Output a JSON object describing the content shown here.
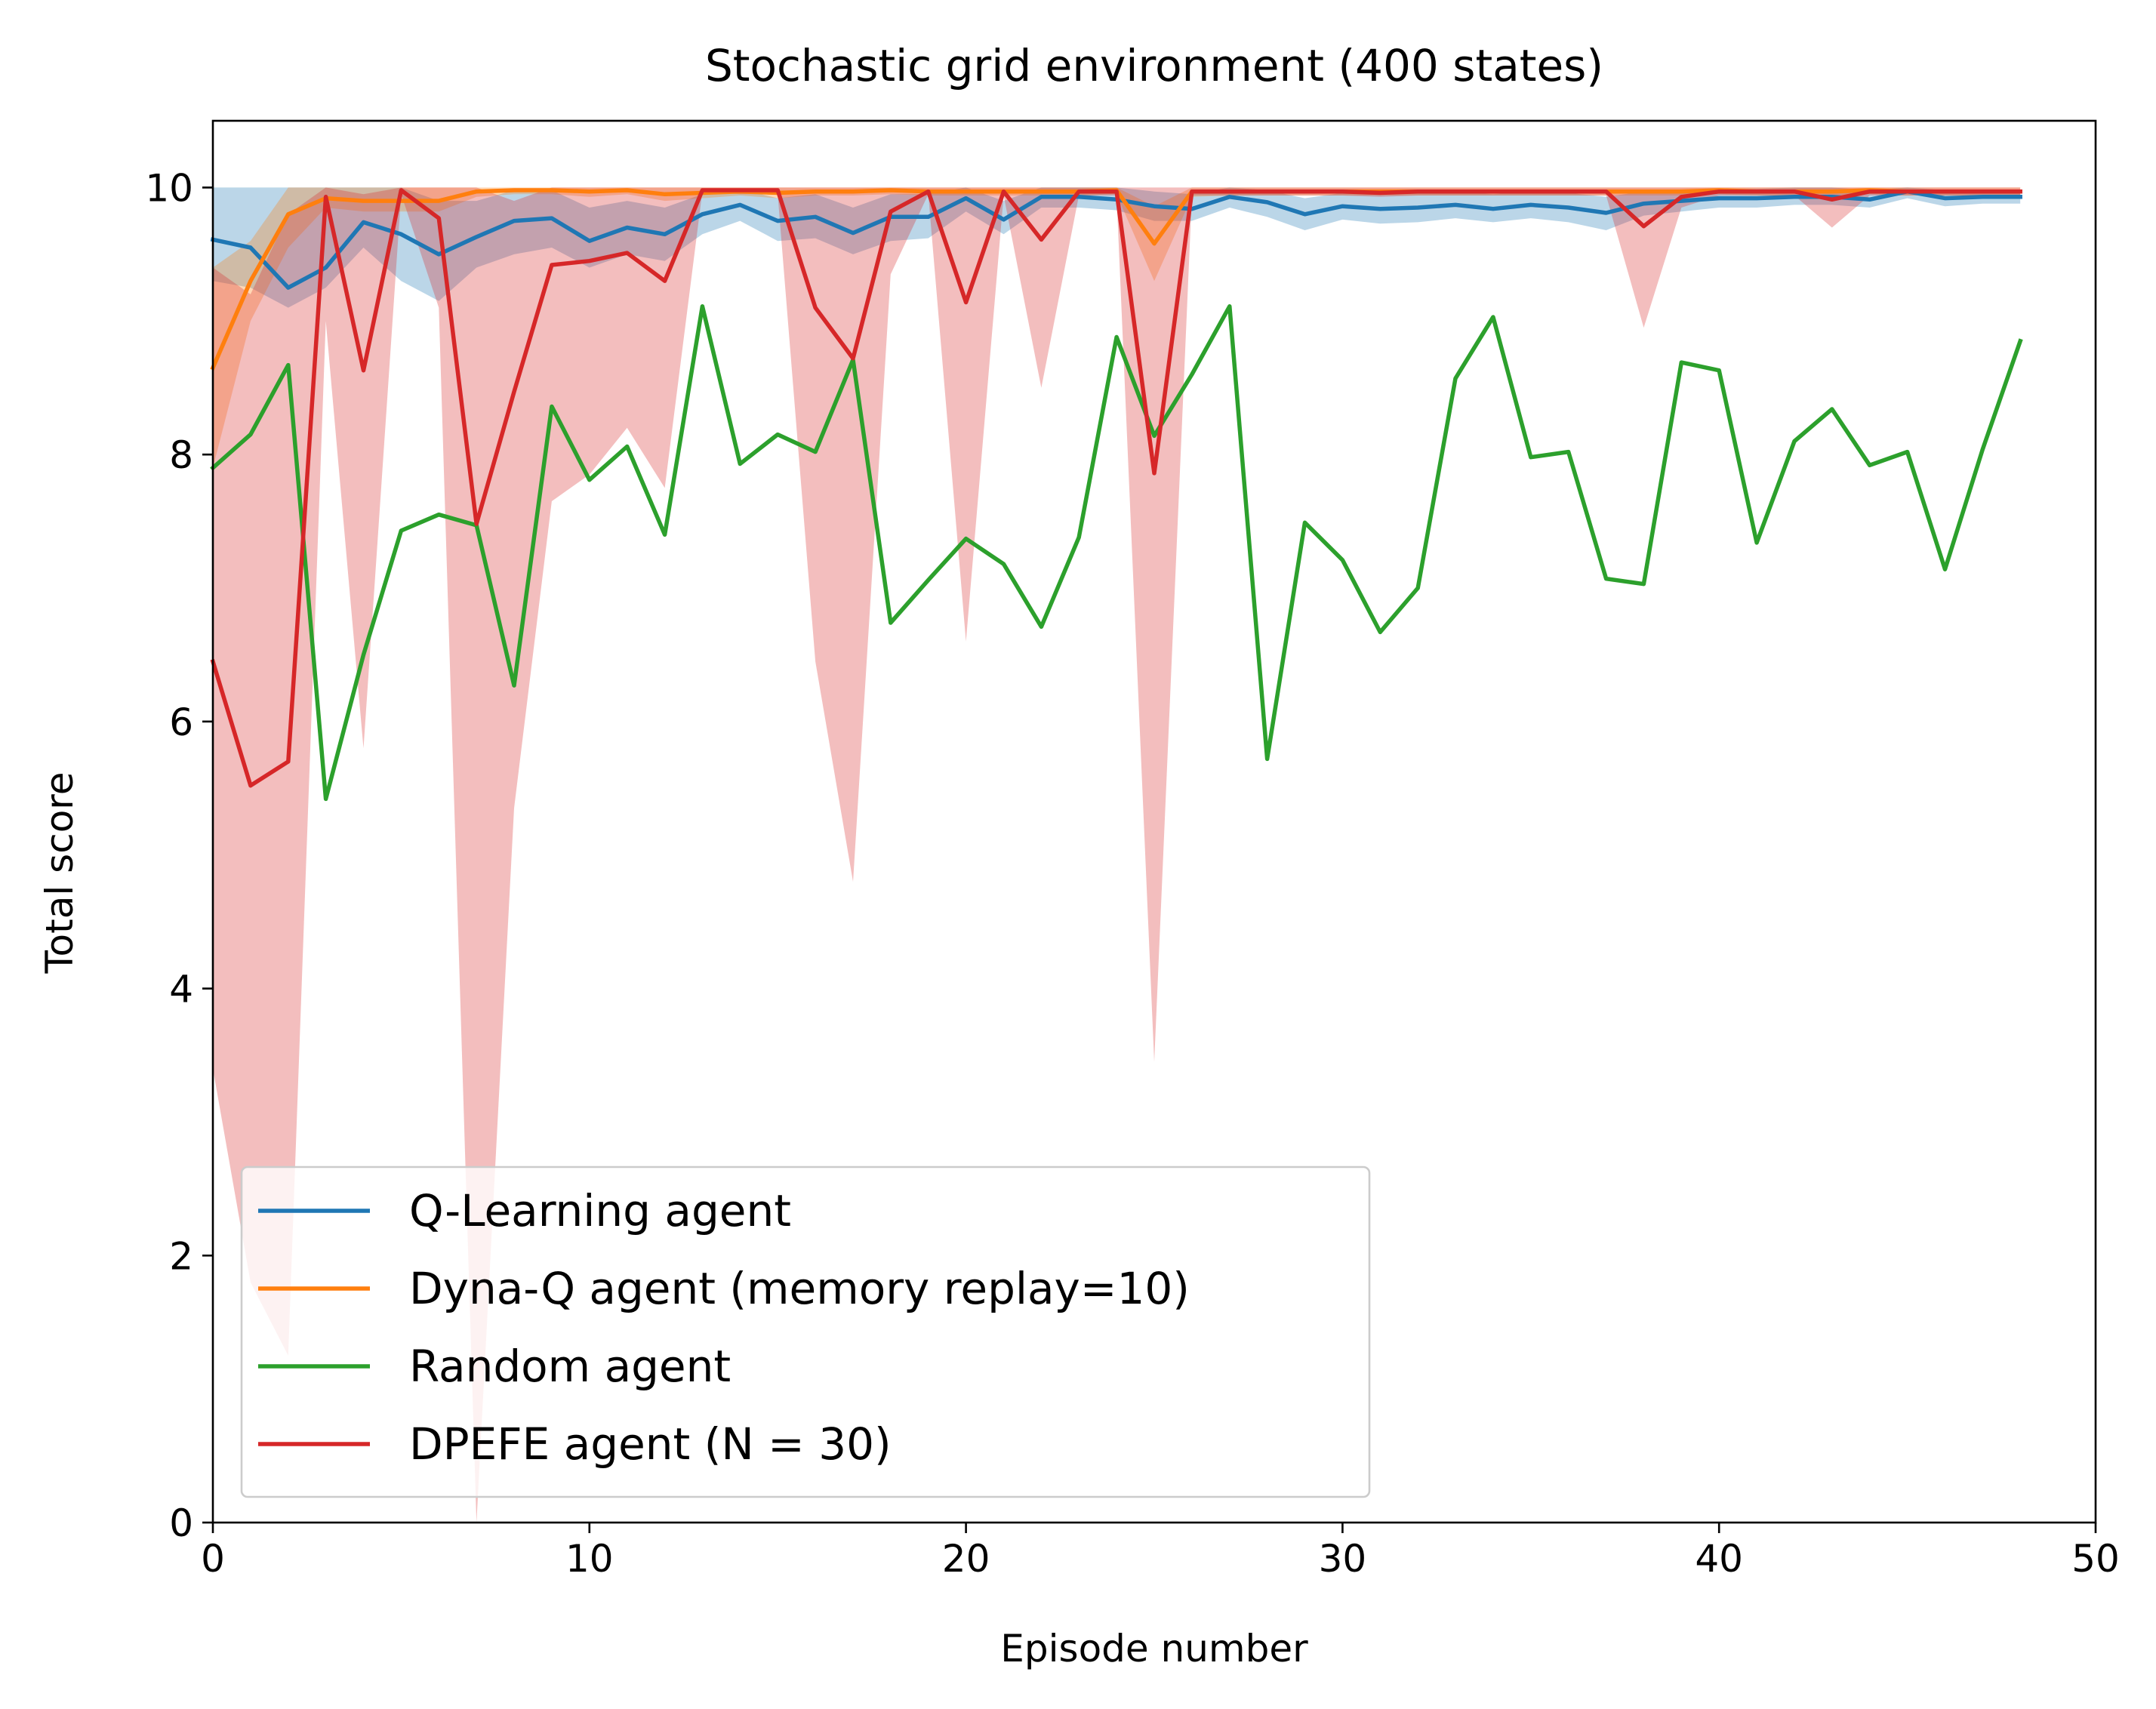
{
  "chart_data": {
    "type": "line",
    "title": "Stochastic grid environment (400 states)",
    "xlabel": "Episode number",
    "ylabel": "Total score",
    "xlim": [
      0,
      50
    ],
    "ylim": [
      0,
      10.5
    ],
    "xticks": [
      0,
      10,
      20,
      30,
      40,
      50
    ],
    "xtick_labels": [
      "0",
      "10",
      "20",
      "30",
      "40",
      "50"
    ],
    "yticks": [
      0,
      2,
      4,
      6,
      8,
      10
    ],
    "ytick_labels": [
      "0",
      "2",
      "4",
      "6",
      "8",
      "10"
    ],
    "grid": false,
    "legend_position": "lower-left",
    "x": [
      0,
      1,
      2,
      3,
      4,
      5,
      6,
      7,
      8,
      9,
      10,
      11,
      12,
      13,
      14,
      15,
      16,
      17,
      18,
      19,
      20,
      21,
      22,
      23,
      24,
      25,
      26,
      27,
      28,
      29,
      30,
      31,
      32,
      33,
      34,
      35,
      36,
      37,
      38,
      39,
      40,
      41,
      42,
      43,
      44,
      45,
      46,
      47,
      48
    ],
    "series": [
      {
        "name": "Q-Learning agent",
        "color": "#1f77b4",
        "values": [
          9.61,
          9.55,
          9.25,
          9.4,
          9.74,
          9.65,
          9.5,
          9.63,
          9.75,
          9.77,
          9.6,
          9.7,
          9.65,
          9.8,
          9.87,
          9.75,
          9.78,
          9.66,
          9.78,
          9.78,
          9.92,
          9.76,
          9.93,
          9.93,
          9.91,
          9.86,
          9.84,
          9.93,
          9.89,
          9.8,
          9.86,
          9.84,
          9.85,
          9.87,
          9.84,
          9.87,
          9.85,
          9.81,
          9.88,
          9.9,
          9.92,
          9.92,
          9.93,
          9.93,
          9.91,
          9.97,
          9.92,
          9.93,
          9.93
        ],
        "band_lower": [
          9.3,
          9.25,
          9.1,
          9.25,
          9.55,
          9.3,
          9.15,
          9.4,
          9.5,
          9.55,
          9.4,
          9.5,
          9.45,
          9.65,
          9.75,
          9.6,
          9.62,
          9.5,
          9.6,
          9.62,
          9.82,
          9.65,
          9.85,
          9.85,
          9.83,
          9.75,
          9.75,
          9.85,
          9.78,
          9.68,
          9.76,
          9.73,
          9.74,
          9.77,
          9.74,
          9.77,
          9.74,
          9.68,
          9.79,
          9.82,
          9.85,
          9.85,
          9.87,
          9.87,
          9.85,
          9.92,
          9.86,
          9.88,
          9.88
        ],
        "band_upper": [
          10.0,
          10.0,
          10.0,
          10.0,
          10.0,
          10.0,
          9.9,
          9.9,
          9.98,
          9.98,
          9.85,
          9.9,
          9.85,
          9.95,
          9.99,
          9.92,
          9.95,
          9.85,
          9.95,
          9.95,
          10.0,
          9.9,
          10.0,
          10.0,
          10.0,
          9.97,
          9.95,
          10.0,
          9.98,
          9.92,
          9.96,
          9.95,
          9.96,
          9.97,
          9.95,
          9.97,
          9.96,
          9.93,
          9.97,
          9.98,
          9.99,
          9.99,
          10.0,
          10.0,
          9.98,
          10.0,
          9.98,
          9.98,
          9.98
        ]
      },
      {
        "name": "Dyna-Q agent (memory replay=10)",
        "color": "#ff7f0e",
        "values": [
          8.65,
          9.3,
          9.8,
          9.92,
          9.9,
          9.9,
          9.9,
          9.97,
          9.98,
          9.98,
          9.97,
          9.98,
          9.95,
          9.96,
          9.97,
          9.96,
          9.97,
          9.97,
          9.98,
          9.97,
          9.97,
          9.97,
          9.97,
          9.97,
          9.98,
          9.58,
          9.97,
          9.97,
          9.97,
          9.97,
          9.97,
          9.97,
          9.97,
          9.97,
          9.97,
          9.97,
          9.97,
          9.97,
          9.97,
          9.97,
          9.98,
          9.97,
          9.97,
          9.97,
          9.98,
          9.97,
          9.97,
          9.97,
          9.97
        ],
        "band_lower": [
          7.9,
          9.0,
          9.55,
          9.85,
          9.82,
          9.82,
          9.82,
          9.93,
          9.95,
          9.95,
          9.93,
          9.95,
          9.9,
          9.92,
          9.94,
          9.92,
          9.94,
          9.94,
          9.95,
          9.94,
          9.94,
          9.94,
          9.94,
          9.94,
          9.95,
          9.3,
          9.93,
          9.94,
          9.94,
          9.94,
          9.94,
          9.94,
          9.94,
          9.94,
          9.94,
          9.94,
          9.94,
          9.94,
          9.94,
          9.94,
          9.95,
          9.94,
          9.94,
          9.94,
          9.95,
          9.94,
          9.94,
          9.94,
          9.94
        ],
        "band_upper": [
          9.4,
          9.6,
          10.0,
          10.0,
          10.0,
          10.0,
          10.0,
          10.0,
          10.0,
          10.0,
          10.0,
          10.0,
          10.0,
          10.0,
          10.0,
          10.0,
          10.0,
          10.0,
          10.0,
          10.0,
          10.0,
          10.0,
          10.0,
          10.0,
          10.0,
          9.86,
          10.0,
          10.0,
          10.0,
          10.0,
          10.0,
          10.0,
          10.0,
          10.0,
          10.0,
          10.0,
          10.0,
          10.0,
          10.0,
          10.0,
          10.0,
          10.0,
          10.0,
          10.0,
          10.0,
          10.0,
          10.0,
          10.0,
          10.0
        ]
      },
      {
        "name": "Random agent",
        "color": "#2ca02c",
        "values": [
          7.9,
          8.15,
          8.67,
          5.42,
          6.5,
          7.43,
          7.55,
          7.47,
          6.27,
          8.36,
          7.81,
          8.06,
          7.4,
          9.11,
          7.93,
          8.15,
          8.02,
          8.71,
          6.74,
          7.06,
          7.37,
          7.18,
          6.71,
          7.38,
          8.88,
          8.14,
          8.6,
          9.11,
          5.72,
          7.49,
          7.21,
          6.67,
          7.0,
          8.57,
          9.03,
          7.98,
          8.02,
          7.07,
          7.03,
          8.69,
          8.63,
          7.34,
          8.1,
          8.34,
          7.92,
          8.02,
          7.14,
          8.04,
          8.85
        ]
      },
      {
        "name": "DPEFE agent (N = 30)",
        "color": "#d62728",
        "values": [
          6.45,
          5.52,
          5.7,
          9.93,
          8.63,
          9.98,
          9.77,
          7.48,
          8.47,
          9.42,
          9.45,
          9.51,
          9.3,
          9.98,
          9.98,
          9.98,
          9.1,
          8.72,
          9.82,
          9.97,
          9.14,
          9.97,
          9.61,
          9.97,
          9.97,
          7.86,
          9.97,
          9.97,
          9.97,
          9.97,
          9.97,
          9.96,
          9.97,
          9.97,
          9.97,
          9.97,
          9.97,
          9.97,
          9.71,
          9.93,
          9.97,
          9.97,
          9.97,
          9.91,
          9.97,
          9.97,
          9.97,
          9.97,
          9.97
        ],
        "band_lower": [
          3.4,
          1.8,
          1.25,
          9.0,
          5.8,
          9.95,
          9.1,
          0.0,
          5.35,
          7.65,
          7.85,
          8.2,
          7.75,
          9.97,
          9.95,
          9.95,
          6.45,
          4.8,
          9.35,
          9.95,
          6.6,
          9.94,
          8.5,
          9.94,
          9.94,
          3.45,
          9.94,
          9.94,
          9.94,
          9.94,
          9.94,
          9.93,
          9.94,
          9.94,
          9.94,
          9.94,
          9.94,
          9.94,
          8.95,
          9.85,
          9.94,
          9.94,
          9.94,
          9.7,
          9.94,
          9.94,
          9.94,
          9.94,
          9.94
        ],
        "band_upper": [
          9.4,
          9.2,
          9.8,
          10.0,
          9.95,
          10.0,
          10.0,
          10.0,
          9.9,
          10.0,
          10.0,
          10.0,
          10.0,
          10.0,
          10.0,
          10.0,
          10.0,
          10.0,
          10.0,
          10.0,
          10.0,
          10.0,
          10.0,
          10.0,
          10.0,
          10.0,
          10.0,
          10.0,
          10.0,
          10.0,
          10.0,
          10.0,
          10.0,
          10.0,
          10.0,
          10.0,
          10.0,
          10.0,
          10.0,
          10.0,
          10.0,
          10.0,
          10.0,
          10.0,
          10.0,
          10.0,
          10.0,
          10.0,
          10.0
        ]
      }
    ]
  }
}
